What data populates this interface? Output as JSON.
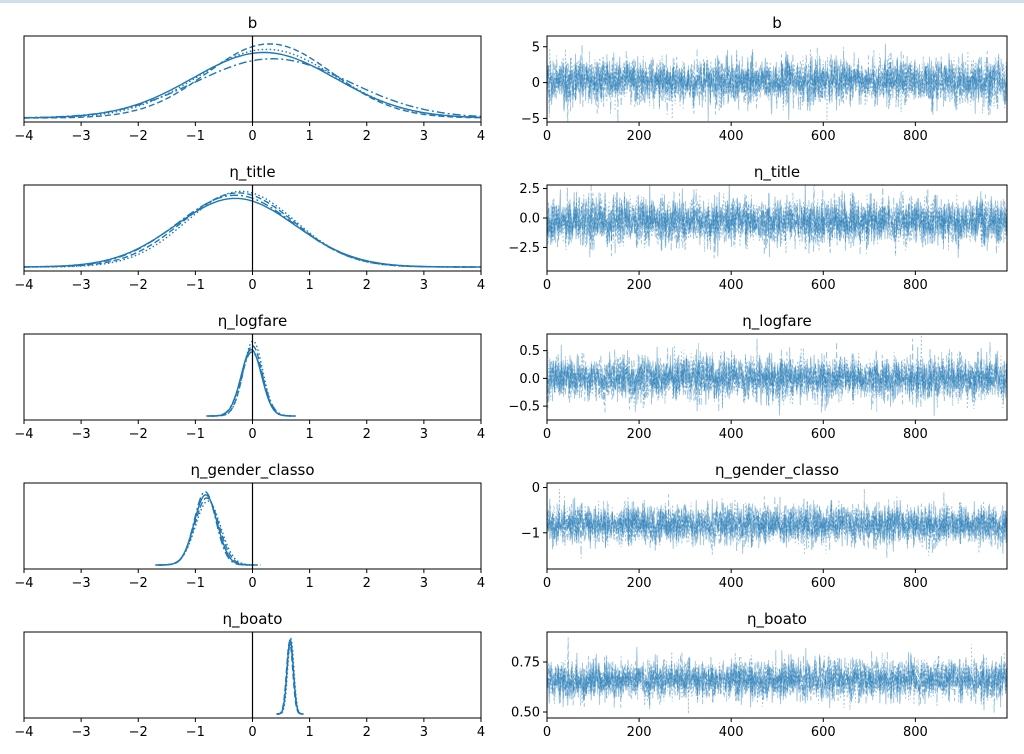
{
  "chart_data": {
    "type": "trace-plot",
    "line_color": "#1f77b4",
    "num_chains": 4,
    "draws": 1000,
    "panels": [
      {
        "variable": "b",
        "density": {
          "title": "b",
          "xlim": [
            -4,
            4
          ],
          "xticks": [
            -4,
            -3,
            -2,
            -1,
            0,
            1,
            2,
            3,
            4
          ],
          "xtick_labels": [
            "−4",
            "−3",
            "−2",
            "−1",
            "0",
            "1",
            "2",
            "3",
            "4"
          ],
          "vline_at": 0,
          "chains": [
            {
              "style": "solid",
              "mean": 0.2,
              "sd": 1.25,
              "peak": 0.84
            },
            {
              "style": "dashed",
              "mean": 0.3,
              "sd": 1.1,
              "peak": 0.95
            },
            {
              "style": "dashdot",
              "mean": 0.35,
              "sd": 1.35,
              "peak": 0.76
            },
            {
              "style": "dotted",
              "mean": 0.25,
              "sd": 1.2,
              "peak": 0.88
            }
          ]
        },
        "trace": {
          "title": "b",
          "xlim": [
            0,
            999
          ],
          "ylim": [
            -5.5,
            6.5
          ],
          "center": 0.2,
          "sd": 1.6,
          "xticks": [
            0,
            200,
            400,
            600,
            800
          ],
          "xtick_labels": [
            "0",
            "200",
            "400",
            "600",
            "800"
          ],
          "yticks": [
            5,
            0,
            -5
          ],
          "ytick_labels": [
            "5",
            "0",
            "−5"
          ]
        }
      },
      {
        "variable": "η_title",
        "density": {
          "title": "η_title",
          "xlim": [
            -4,
            4
          ],
          "xticks": [
            -4,
            -3,
            -2,
            -1,
            0,
            1,
            2,
            3,
            4
          ],
          "xtick_labels": [
            "−4",
            "−3",
            "−2",
            "−1",
            "0",
            "1",
            "2",
            "3",
            "4"
          ],
          "vline_at": 0,
          "chains": [
            {
              "style": "solid",
              "mean": -0.3,
              "sd": 1.05,
              "peak": 0.88
            },
            {
              "style": "dashed",
              "mean": -0.25,
              "sd": 0.98,
              "peak": 0.95
            },
            {
              "style": "dashdot",
              "mean": -0.3,
              "sd": 1.02,
              "peak": 0.92
            },
            {
              "style": "dotted",
              "mean": -0.2,
              "sd": 0.95,
              "peak": 0.97
            }
          ]
        },
        "trace": {
          "title": "η_title",
          "xlim": [
            0,
            999
          ],
          "ylim": [
            -4.5,
            2.8
          ],
          "center": -0.3,
          "sd": 1.0,
          "xticks": [
            0,
            200,
            400,
            600,
            800
          ],
          "xtick_labels": [
            "0",
            "200",
            "400",
            "600",
            "800"
          ],
          "yticks": [
            2.5,
            0.0,
            -2.5
          ],
          "ytick_labels": [
            "2.5",
            "0.0",
            "−2.5"
          ]
        }
      },
      {
        "variable": "η_logfare",
        "density": {
          "title": "η_logfare",
          "xlim": [
            -4,
            4
          ],
          "xticks": [
            -4,
            -3,
            -2,
            -1,
            0,
            1,
            2,
            3,
            4
          ],
          "xtick_labels": [
            "−4",
            "−3",
            "−2",
            "−1",
            "0",
            "1",
            "2",
            "3",
            "4"
          ],
          "vline_at": 0,
          "chains": [
            {
              "style": "solid",
              "mean": -0.02,
              "sd": 0.18,
              "peak": 0.85
            },
            {
              "style": "dashed",
              "mean": 0.0,
              "sd": 0.17,
              "peak": 0.9
            },
            {
              "style": "dashdot",
              "mean": -0.01,
              "sd": 0.19,
              "peak": 0.82
            },
            {
              "style": "dotted",
              "mean": 0.01,
              "sd": 0.17,
              "peak": 0.96
            }
          ]
        },
        "trace": {
          "title": "η_logfare",
          "xlim": [
            0,
            999
          ],
          "ylim": [
            -0.75,
            0.8
          ],
          "center": 0.0,
          "sd": 0.2,
          "xticks": [
            0,
            200,
            400,
            600,
            800
          ],
          "xtick_labels": [
            "0",
            "200",
            "400",
            "600",
            "800"
          ],
          "yticks": [
            0.5,
            0.0,
            -0.5
          ],
          "ytick_labels": [
            "0.5",
            "0.0",
            "−0.5"
          ]
        }
      },
      {
        "variable": "η_gender_classo",
        "density": {
          "title": "η_gender_classo",
          "xlim": [
            -4,
            4
          ],
          "xticks": [
            -4,
            -3,
            -2,
            -1,
            0,
            1,
            2,
            3,
            4
          ],
          "xtick_labels": [
            "−4",
            "−3",
            "−2",
            "−1",
            "0",
            "1",
            "2",
            "3",
            "4"
          ],
          "vline_at": 0,
          "chains": [
            {
              "style": "solid",
              "mean": -0.82,
              "sd": 0.2,
              "peak": 0.9
            },
            {
              "style": "dashed",
              "mean": -0.8,
              "sd": 0.21,
              "peak": 0.86
            },
            {
              "style": "dashdot",
              "mean": -0.83,
              "sd": 0.19,
              "peak": 0.94
            },
            {
              "style": "dotted",
              "mean": -0.78,
              "sd": 0.22,
              "peak": 0.82
            }
          ]
        },
        "trace": {
          "title": "η_gender_classo",
          "xlim": [
            0,
            999
          ],
          "ylim": [
            -1.8,
            0.1
          ],
          "center": -0.82,
          "sd": 0.22,
          "xticks": [
            0,
            200,
            400,
            600,
            800
          ],
          "xtick_labels": [
            "0",
            "200",
            "400",
            "600",
            "800"
          ],
          "yticks": [
            0,
            -1
          ],
          "ytick_labels": [
            "0",
            "−1"
          ]
        }
      },
      {
        "variable": "η_boato",
        "density": {
          "title": "η_boato",
          "xlim": [
            -4,
            4
          ],
          "xticks": [
            -4,
            -3,
            -2,
            -1,
            0,
            1,
            2,
            3,
            4
          ],
          "xtick_labels": [
            "−4",
            "−3",
            "−2",
            "−1",
            "0",
            "1",
            "2",
            "3",
            "4"
          ],
          "vline_at": 0,
          "chains": [
            {
              "style": "solid",
              "mean": 0.66,
              "sd": 0.055,
              "peak": 0.95
            },
            {
              "style": "dashed",
              "mean": 0.65,
              "sd": 0.055,
              "peak": 0.92
            },
            {
              "style": "dashdot",
              "mean": 0.66,
              "sd": 0.056,
              "peak": 0.9
            },
            {
              "style": "dotted",
              "mean": 0.67,
              "sd": 0.054,
              "peak": 0.97
            }
          ]
        },
        "trace": {
          "title": "η_boato",
          "xlim": [
            0,
            999
          ],
          "ylim": [
            0.47,
            0.9
          ],
          "center": 0.66,
          "sd": 0.05,
          "xticks": [
            0,
            200,
            400,
            600,
            800
          ],
          "xtick_labels": [
            "0",
            "200",
            "400",
            "600",
            "800"
          ],
          "yticks": [
            0.75,
            0.5
          ],
          "ytick_labels": [
            "0.75",
            "0.50"
          ]
        }
      }
    ]
  }
}
